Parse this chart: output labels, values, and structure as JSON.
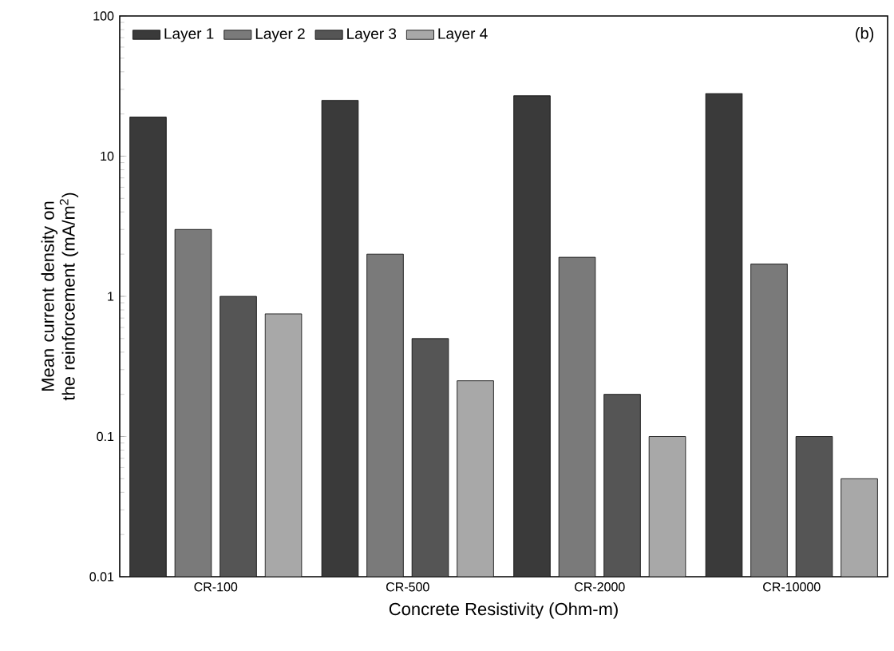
{
  "chart_data": {
    "type": "bar",
    "xlabel": "Concrete Resistivity (Ohm-m)",
    "ylabel": "Mean current density on the reinforcement (mA/m$^{2}$)",
    "categories": [
      "CR-100",
      "CR-500",
      "CR-2000",
      "CR-10000"
    ],
    "series": [
      {
        "name": "Layer 1",
        "color": "#3a3a3a",
        "values": [
          19,
          25,
          27,
          28
        ]
      },
      {
        "name": "Layer 2",
        "color": "#7a7a7a",
        "values": [
          3,
          2,
          1.9,
          1.7
        ]
      },
      {
        "name": "Layer 3",
        "color": "#555555",
        "values": [
          1,
          0.5,
          0.2,
          0.1
        ]
      },
      {
        "name": "Layer 4",
        "color": "#a8a8a8",
        "values": [
          0.75,
          0.25,
          0.1,
          0.05
        ]
      }
    ],
    "log": "y",
    "ylim": [
      0.01,
      100
    ],
    "yticks": [
      0.01,
      0.1,
      1,
      10,
      100
    ],
    "legend": "top left",
    "annotations": [
      "(b)"
    ]
  }
}
